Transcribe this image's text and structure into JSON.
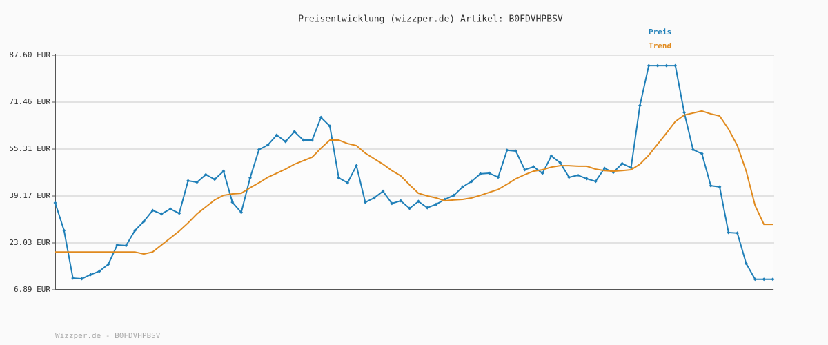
{
  "chart_data": {
    "type": "line",
    "title": "Preisentwicklung (wizzper.de) Artikel: B0FDVHPBSV",
    "footer": "Wizzper.de - B0FDVHPBSV",
    "ylim": [
      6.89,
      87.6
    ],
    "yticks": [
      {
        "value": 6.89,
        "label": "6.89 EUR"
      },
      {
        "value": 23.03,
        "label": "23.03 EUR"
      },
      {
        "value": 39.17,
        "label": "39.17 EUR"
      },
      {
        "value": 55.31,
        "label": "55.31 EUR"
      },
      {
        "value": 71.46,
        "label": "71.46 EUR"
      },
      {
        "value": 87.6,
        "label": "87.60 EUR"
      }
    ],
    "grid": true,
    "legend": "top-right",
    "series": [
      {
        "name": "Preis",
        "color": "#1f7fb8",
        "markers": true,
        "values": [
          36.8,
          27.3,
          10.9,
          10.7,
          12.1,
          13.3,
          15.7,
          22.3,
          22.1,
          27.3,
          30.4,
          34.2,
          33.0,
          34.7,
          33.2,
          44.4,
          43.9,
          46.5,
          44.9,
          47.7,
          37.0,
          33.5,
          45.4,
          55.1,
          56.7,
          60.1,
          57.9,
          61.3,
          58.4,
          58.4,
          66.2,
          63.2,
          45.4,
          43.7,
          49.6,
          37.0,
          38.5,
          40.8,
          36.6,
          37.5,
          34.9,
          37.3,
          35.1,
          36.3,
          38.0,
          39.4,
          42.3,
          44.2,
          46.8,
          47.0,
          45.6,
          54.9,
          54.6,
          48.2,
          49.2,
          47.0,
          52.9,
          50.6,
          45.6,
          46.3,
          45.1,
          44.2,
          48.7,
          47.3,
          50.3,
          48.9,
          70.3,
          84.0,
          84.0,
          84.0,
          84.0,
          67.9,
          55.1,
          53.7,
          42.7,
          42.3,
          26.6,
          26.4,
          15.9,
          10.5,
          10.5,
          10.5
        ]
      },
      {
        "name": "Trend",
        "color": "#e08a1e",
        "markers": false,
        "values": [
          19.9,
          19.9,
          19.9,
          19.9,
          19.9,
          19.9,
          19.9,
          19.9,
          19.9,
          19.9,
          19.2,
          19.9,
          22.3,
          24.7,
          27.1,
          29.9,
          33.0,
          35.4,
          37.8,
          39.4,
          39.9,
          40.1,
          42.0,
          43.7,
          45.6,
          47.0,
          48.4,
          50.1,
          51.3,
          52.5,
          55.6,
          58.4,
          58.4,
          57.2,
          56.5,
          53.9,
          52.0,
          50.1,
          47.9,
          46.1,
          43.0,
          40.1,
          39.2,
          38.5,
          37.5,
          37.8,
          38.0,
          38.5,
          39.4,
          40.4,
          41.4,
          43.2,
          45.1,
          46.5,
          47.7,
          48.2,
          49.1,
          49.6,
          49.6,
          49.4,
          49.4,
          48.4,
          47.9,
          47.7,
          47.9,
          48.2,
          50.1,
          53.2,
          57.0,
          60.8,
          64.8,
          67.0,
          67.7,
          68.4,
          67.4,
          66.7,
          62.2,
          56.5,
          47.7,
          35.9,
          29.4,
          29.4
        ]
      }
    ]
  }
}
